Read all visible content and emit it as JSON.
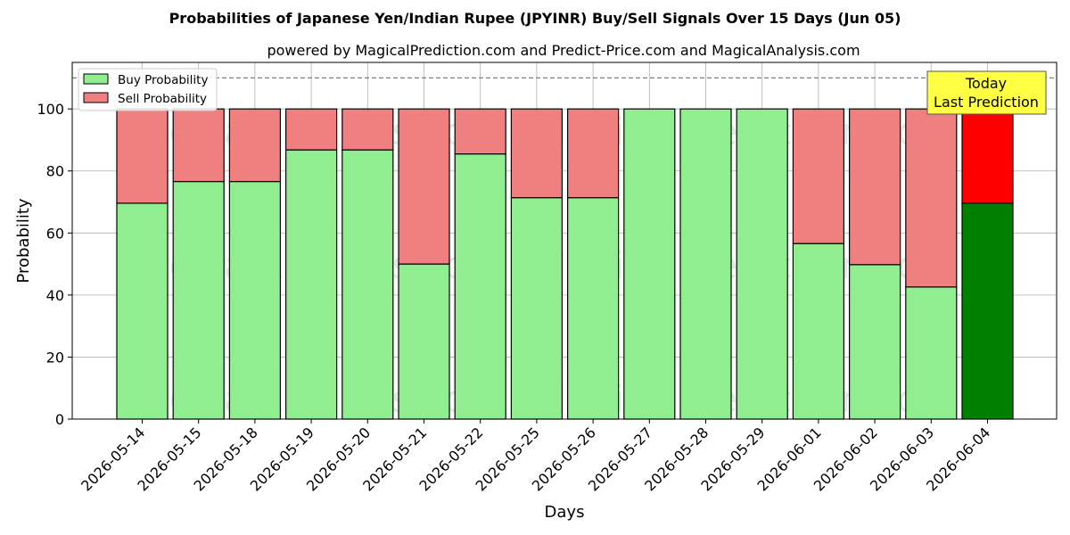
{
  "chart_data": {
    "type": "bar",
    "stacked": true,
    "title": "Probabilities of Japanese Yen/Indian Rupee (JPYINR) Buy/Sell Signals Over 15 Days (Jun 05)",
    "subtitle": "powered by MagicalPrediction.com and Predict-Price.com and MagicalAnalysis.com",
    "xlabel": "Days",
    "ylabel": "Probability",
    "ylim": [
      0,
      115
    ],
    "yticks": [
      0,
      20,
      40,
      60,
      80,
      100
    ],
    "grid": true,
    "legend_position": "top-left",
    "reference_line": 110,
    "categories": [
      "2026-05-14",
      "2026-05-15",
      "2026-05-18",
      "2026-05-19",
      "2026-05-20",
      "2026-05-21",
      "2026-05-22",
      "2026-05-25",
      "2026-05-26",
      "2026-05-27",
      "2026-05-28",
      "2026-05-29",
      "2026-06-01",
      "2026-06-02",
      "2026-06-03",
      "2026-06-04"
    ],
    "series": [
      {
        "name": "Buy Probability",
        "color": "#90ee90",
        "highlight_color": "#008000",
        "values": [
          69.6,
          76.6,
          76.6,
          86.8,
          86.8,
          50.0,
          85.5,
          71.4,
          71.4,
          100,
          100,
          100,
          56.6,
          49.8,
          42.6,
          69.6
        ]
      },
      {
        "name": "Sell Probability",
        "color": "#f08080",
        "highlight_color": "#ff0000",
        "values": [
          30.4,
          23.4,
          23.4,
          13.2,
          13.2,
          50.0,
          14.5,
          28.6,
          28.6,
          0,
          0,
          0,
          43.4,
          50.2,
          57.4,
          30.4
        ]
      }
    ],
    "highlight_index": 15,
    "annotation": {
      "lines": [
        "Today",
        "Last Prediction"
      ],
      "color": "#ffff44"
    },
    "watermarks": [
      "MagicalAnalysis.com",
      "MagicalPrediction.com"
    ]
  }
}
